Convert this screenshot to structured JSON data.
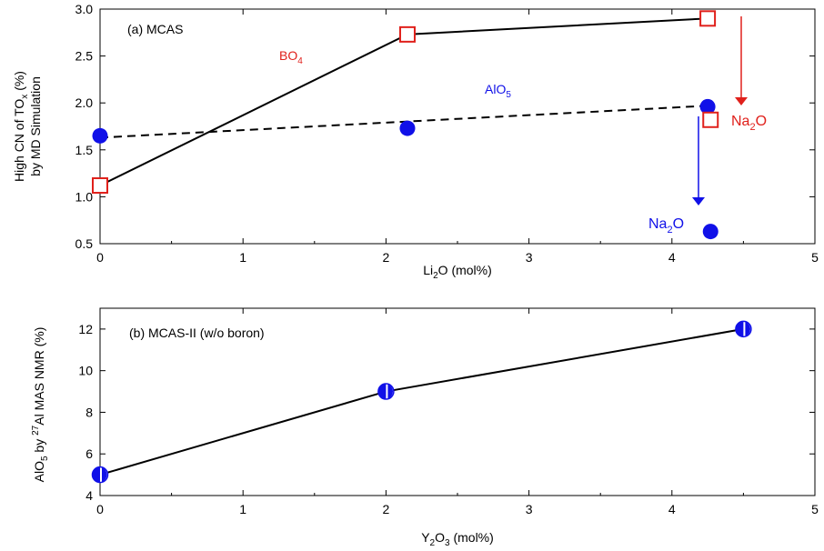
{
  "chart_data": [
    {
      "type": "line",
      "panel_label": "(a) MCAS",
      "xlabel": "Li2O (mol%)",
      "xlabel_main": "Li",
      "xlabel_sub": "2",
      "xlabel_rest": "O (mol%)",
      "ylabel_line1": "High CN of TOx (%)",
      "ylabel_line1_main": "High CN of TO",
      "ylabel_line1_sub": "x",
      "ylabel_line1_rest": " (%)",
      "ylabel_line2": "by MD Simulation",
      "xlim": [
        0,
        5
      ],
      "ylim": [
        0.5,
        3.0
      ],
      "xticks": [
        0,
        1,
        2,
        3,
        4,
        5
      ],
      "xtick_labels": [
        "0",
        "1",
        "2",
        "3",
        "4",
        "5"
      ],
      "yticks": [
        0.5,
        1.0,
        1.5,
        2.0,
        2.5,
        3.0
      ],
      "ytick_labels": [
        "0.5",
        "1.0",
        "1.5",
        "2.0",
        "2.5",
        "3.0"
      ],
      "grid": false,
      "series": [
        {
          "name": "BO4",
          "name_main": "BO",
          "name_sub": "4",
          "color": "#e0201b",
          "marker": "open-square",
          "line": "solid",
          "x": [
            0,
            2.15,
            4.25
          ],
          "y": [
            1.12,
            2.73,
            2.9
          ]
        },
        {
          "name": "AlO5",
          "name_main": "AlO",
          "name_sub": "5",
          "color": "#1010e8",
          "marker": "filled-circle",
          "line": "dashed",
          "x": [
            0,
            2.15,
            4.25
          ],
          "y": [
            1.65,
            1.73,
            1.96
          ],
          "fit_line": {
            "x": [
              0,
              4.25
            ],
            "y": [
              1.63,
              1.97
            ]
          }
        }
      ],
      "extra_points": [
        {
          "series": "BO4",
          "x": 4.27,
          "y": 1.82,
          "label": "Na2O",
          "label_main": "Na",
          "label_sub": "2",
          "label_rest": "O"
        },
        {
          "series": "AlO5",
          "x": 4.27,
          "y": 0.63,
          "label": "Na2O",
          "label_main": "Na",
          "label_sub": "2",
          "label_rest": "O"
        }
      ]
    },
    {
      "type": "line",
      "panel_label": "(b) MCAS-II (w/o boron)",
      "xlabel": "Y2O3 (mol%)",
      "ylabel": "AlO5 by 27Al MAS NMR (%)",
      "xlim": [
        0,
        5
      ],
      "ylim": [
        4,
        13
      ],
      "xticks": [
        0,
        1,
        2,
        3,
        4,
        5
      ],
      "xtick_labels": [
        "0",
        "1",
        "2",
        "3",
        "4",
        "5"
      ],
      "yticks": [
        4,
        6,
        8,
        10,
        12
      ],
      "ytick_labels": [
        "4",
        "6",
        "8",
        "10",
        "12"
      ],
      "grid": false,
      "series": [
        {
          "color": "#1010e8",
          "marker": "half-filled-circle",
          "line": "solid",
          "x": [
            0,
            2,
            4.5
          ],
          "y": [
            5,
            9,
            12
          ]
        }
      ]
    }
  ]
}
